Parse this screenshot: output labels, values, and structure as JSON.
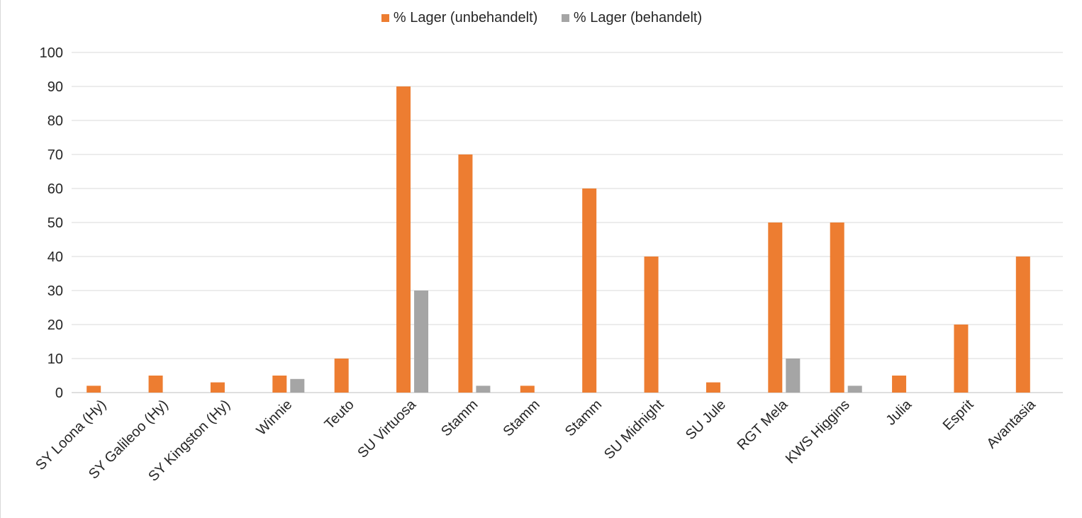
{
  "chart_data": {
    "type": "bar",
    "title": "",
    "xlabel": "",
    "ylabel": "",
    "ylim": [
      0,
      100
    ],
    "yticks": [
      0,
      10,
      20,
      30,
      40,
      50,
      60,
      70,
      80,
      90,
      100
    ],
    "grid": true,
    "legend_position": "top",
    "categories": [
      "SY Loona (Hy)",
      "SY Galileoo (Hy)",
      "SY Kingston (Hy)",
      "Winnie",
      "Teuto",
      "SU Virtuosa",
      "Stamm",
      "Stamm",
      "Stamm",
      "SU Midnight",
      "SU Jule",
      "RGT Mela",
      "KWS Higgins",
      "Julia",
      "Esprit",
      "Avantasia"
    ],
    "series": [
      {
        "name": "% Lager (unbehandelt)",
        "color": "#ED7D31",
        "values": [
          2,
          5,
          3,
          5,
          10,
          90,
          70,
          2,
          60,
          40,
          3,
          50,
          50,
          5,
          20,
          40
        ]
      },
      {
        "name": "% Lager (behandelt)",
        "color": "#A5A5A5",
        "values": [
          0,
          0,
          0,
          4,
          0,
          30,
          2,
          0,
          0,
          0,
          0,
          10,
          2,
          0,
          0,
          0
        ]
      }
    ]
  }
}
